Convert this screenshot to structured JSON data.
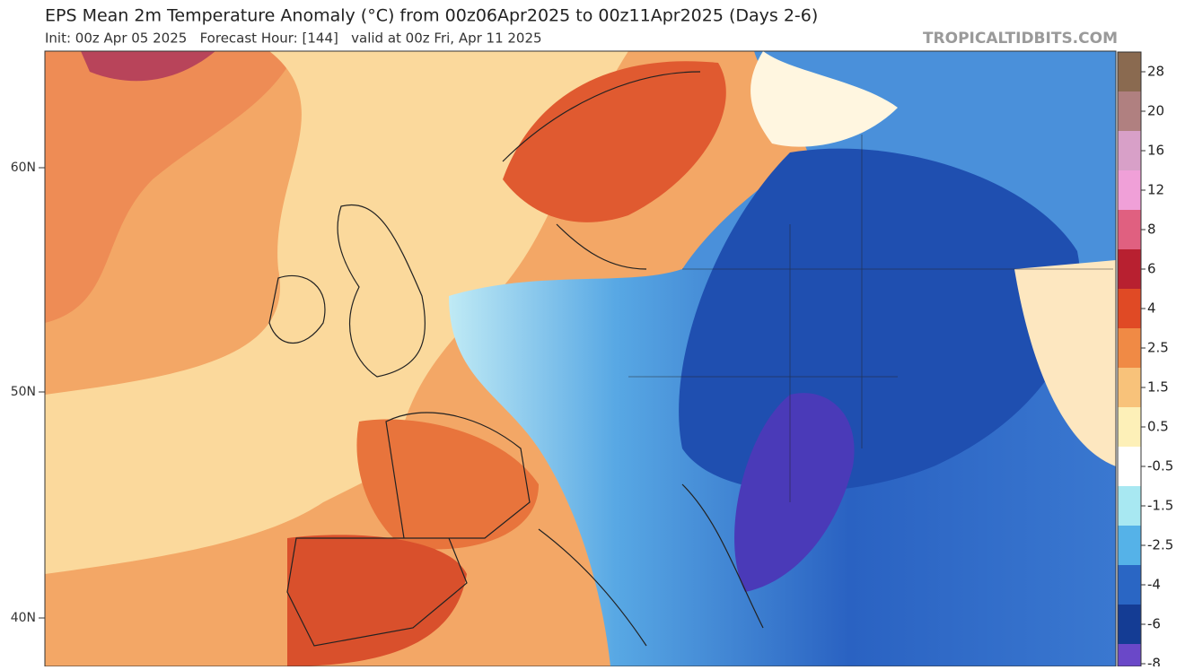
{
  "header": {
    "title": "EPS Mean 2m Temperature Anomaly (°C) from 00z06Apr2025 to 00z11Apr2025 (Days 2-6)",
    "subtitle": "Init: 00z Apr 05 2025   Forecast Hour: [144]   valid at 00z Fri, Apr 11 2025",
    "source": "TROPICALTIDBITS.COM"
  },
  "map": {
    "lat_labels": [
      "60N",
      "50N",
      "40N"
    ]
  },
  "colorbar": {
    "labels": [
      "28",
      "20",
      "16",
      "12",
      "8",
      "6",
      "4",
      "2.5",
      "1.5",
      "0.5",
      "-0.5",
      "-1.5",
      "-2.5",
      "-4",
      "-6",
      "-8"
    ],
    "colors": [
      "#8a6a50",
      "#b08080",
      "#d8a0c8",
      "#f0a0d8",
      "#e06080",
      "#b82030",
      "#e04a25",
      "#f08a45",
      "#f8c27a",
      "#fdf0b8",
      "#ffffff",
      "#a8e8f2",
      "#55b2e8",
      "#2a66c4",
      "#143c94",
      "#6a48c8"
    ]
  }
}
